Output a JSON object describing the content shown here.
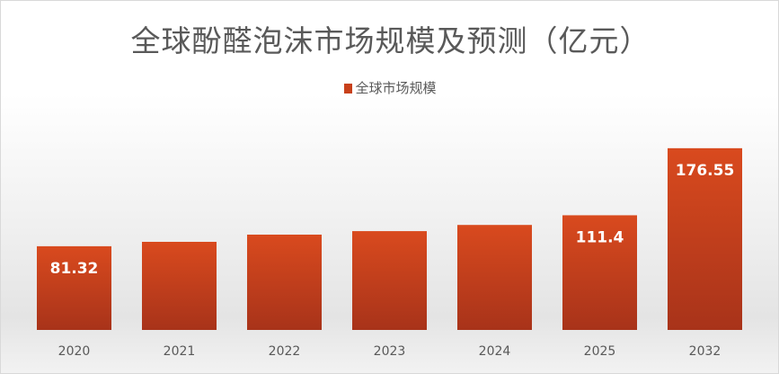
{
  "chart_data": {
    "type": "bar",
    "title": "全球酚醛泡沫市场规模及预测（亿元）",
    "categories": [
      "2020",
      "2021",
      "2022",
      "2023",
      "2024",
      "2025",
      "2032"
    ],
    "series": [
      {
        "name": "全球市场规模",
        "values": [
          81.32,
          85.6,
          92.6,
          96.0,
          102.0,
          111.4,
          176.55
        ]
      }
    ],
    "data_labels": [
      "81.32",
      "",
      "",
      "",
      "",
      "111.4",
      "176.55"
    ],
    "ylim": [
      0,
      200
    ],
    "grid": false,
    "legend_position": "top",
    "colors": {
      "bar_top": "#d94a1e",
      "bar_bottom": "#a8331a",
      "label": "#ffffff"
    }
  }
}
